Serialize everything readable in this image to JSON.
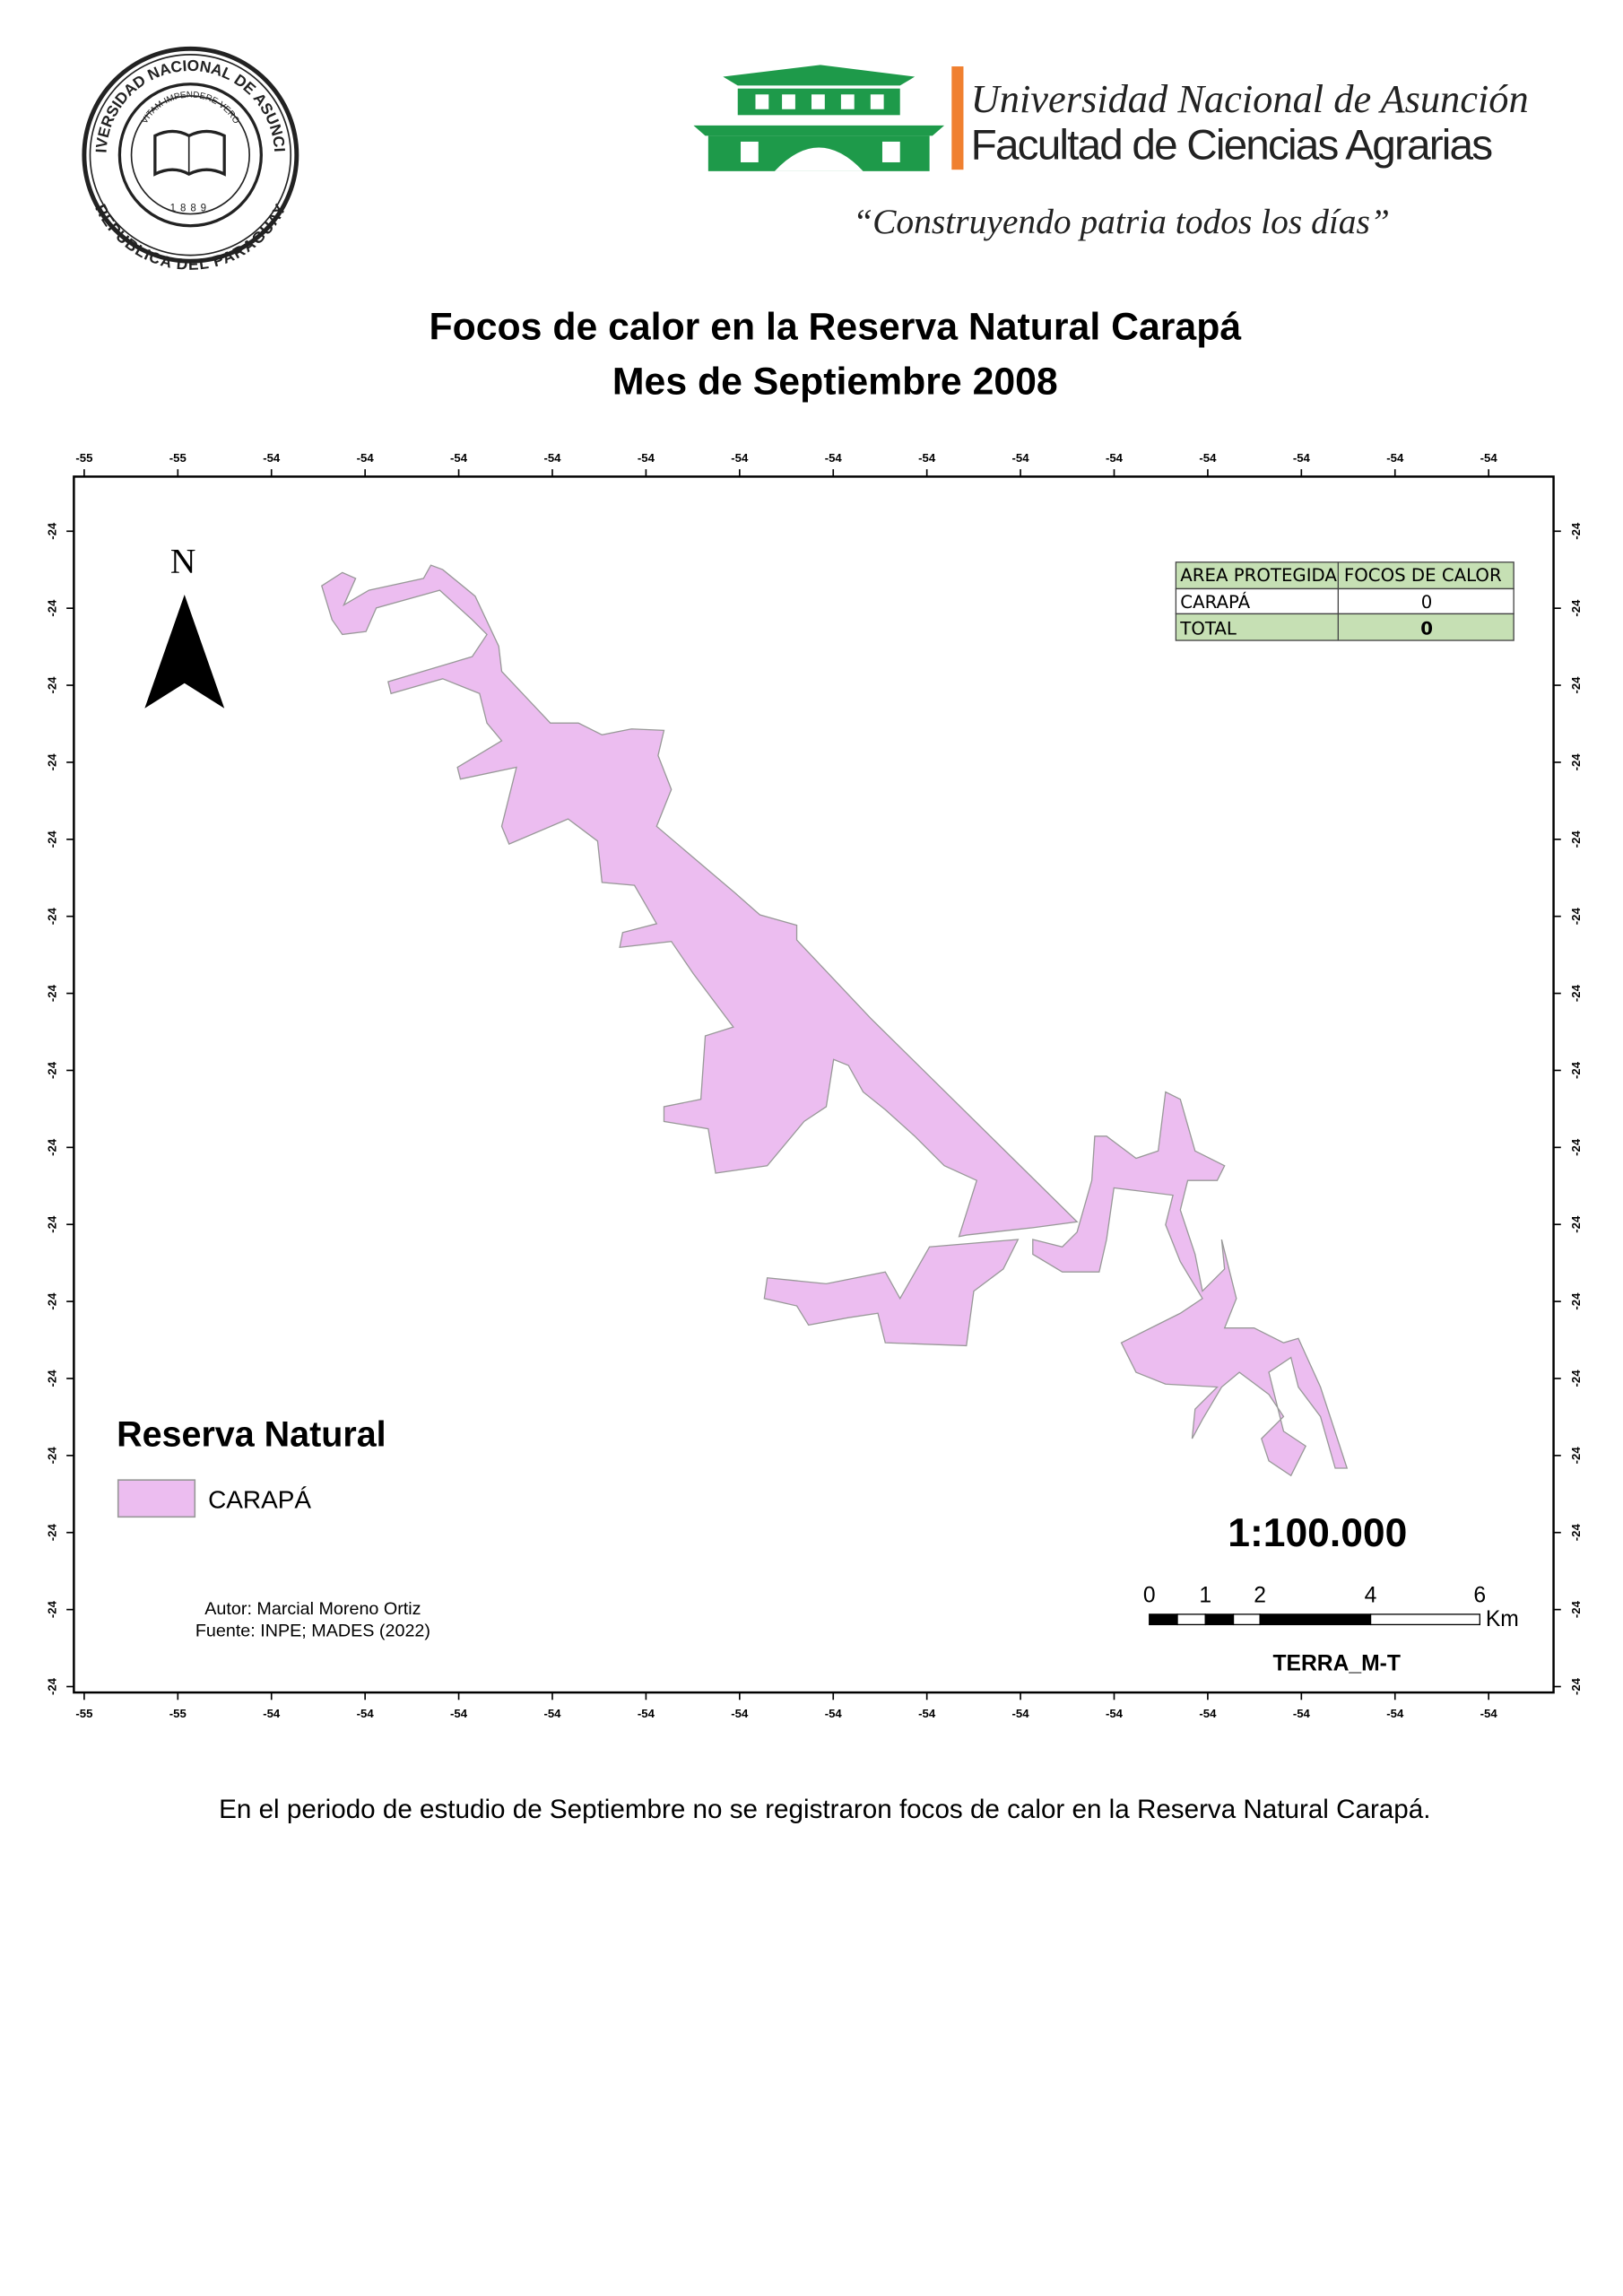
{
  "seal": {
    "outer_top": "UNIVERSIDAD NACIONAL DE ASUNCION",
    "outer_bottom": "REPUBLICA DEL PARAGUAY",
    "motto": "VITAM IMPENDERE VERO",
    "year": "1889"
  },
  "header": {
    "university": "Universidad Nacional de Asunción",
    "faculty": "Facultad de Ciencias Agrarias",
    "slogan": "“Construyendo patria todos los días”"
  },
  "title": {
    "line1": "Focos de calor en la Reserva Natural Carapá",
    "line2": "Mes de Septiembre 2008"
  },
  "map": {
    "longitude_labels": [
      "-55",
      "-55",
      "-54",
      "-54",
      "-54",
      "-54",
      "-54",
      "-54",
      "-54",
      "-54",
      "-54",
      "-54",
      "-54",
      "-54",
      "-54",
      "-54"
    ],
    "latitude_labels": [
      "-24",
      "-24",
      "-24",
      "-24",
      "-24",
      "-24",
      "-24",
      "-24",
      "-24",
      "-24",
      "-24",
      "-24",
      "-24",
      "-24",
      "-24",
      "-24"
    ],
    "north": "N",
    "table": {
      "header": [
        "AREA PROTEGIDA",
        "FOCOS DE CALOR"
      ],
      "rows": [
        [
          "CARAPÁ",
          "0"
        ],
        [
          "TOTAL",
          "0"
        ]
      ]
    },
    "legend": {
      "title": "Reserva Natural",
      "item": "CARAPÁ"
    },
    "scale": "1:100.000",
    "scalebar": {
      "labels": [
        "0",
        "1",
        "2",
        "4",
        "6"
      ],
      "unit": "Km"
    },
    "satellite": "TERRA_M-T",
    "author": "Autor: Marcial Moreno Ortiz",
    "source": "Fuente: INPE; MADES (2022)"
  },
  "footer": "En el periodo de estudio de Septiembre no se registraron focos de calor en la Reserva Natural Carapá."
}
